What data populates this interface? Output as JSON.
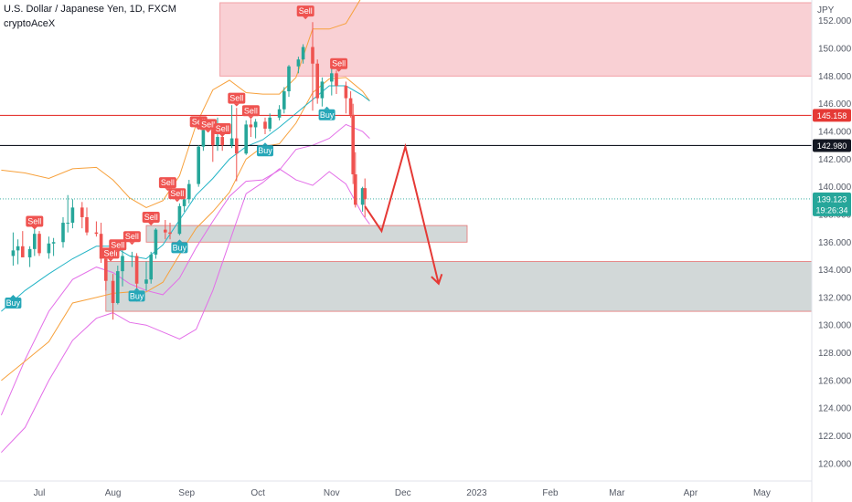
{
  "header": {
    "symbol_title": "U.S. Dollar / Japanese Yen, 1D, FXCM",
    "indicator_name": "cryptoAceX"
  },
  "colors": {
    "up_candle": "#26a69a",
    "down_candle": "#ef5350",
    "resistance_zone": "#f8c8cc",
    "support_zone": "#d0d6d6",
    "orange_band": "#f7a13c",
    "violet_band": "#e36ee8",
    "basis_line": "#23b4c6",
    "red_level": "#e53935",
    "black_level": "#131722",
    "projection": "#e53935",
    "buy_badge": "#26a7b8",
    "sell_badge": "#ef5350"
  },
  "chart_data": {
    "type": "candlestick",
    "title": "U.S. Dollar / Japanese Yen, 1D, FXCM",
    "currency_label": "JPY",
    "x_tick_labels": [
      "Jul",
      "Aug",
      "Sep",
      "Oct",
      "Nov",
      "Dec",
      "2023",
      "Feb",
      "Mar",
      "Apr",
      "May"
    ],
    "y_tick_labels": [
      "120.000",
      "122.000",
      "124.000",
      "126.000",
      "128.000",
      "130.000",
      "132.000",
      "134.000",
      "136.000",
      "138.000",
      "140.000",
      "142.000",
      "144.000",
      "146.000",
      "148.000",
      "150.000",
      "152.000"
    ],
    "ylim": [
      119.0,
      153.3
    ],
    "grid": false,
    "levels": [
      {
        "price": 145.158,
        "label": "145.158",
        "kind": "red"
      },
      {
        "price": 142.98,
        "label": "142.980",
        "kind": "black"
      }
    ],
    "last_price": {
      "price": 139.123,
      "label": "139.123",
      "countdown": "19:26:34"
    },
    "zones": [
      {
        "kind": "resistance",
        "from_date": "2022-09-15",
        "to_date": "2023-06-01",
        "low": 148.0,
        "high": 153.3
      },
      {
        "kind": "support",
        "from_date": "2022-08-15",
        "to_date": "2022-12-28",
        "low": 136.0,
        "high": 137.2
      },
      {
        "kind": "support",
        "from_date": "2022-07-29",
        "to_date": "2023-06-01",
        "low": 131.0,
        "high": 134.6
      }
    ],
    "projection_path": [
      {
        "date": "2022-11-15",
        "price": 138.6
      },
      {
        "date": "2022-11-22",
        "price": 136.8
      },
      {
        "date": "2022-12-02",
        "price": 142.9
      },
      {
        "date": "2022-12-16",
        "price": 133.0
      }
    ],
    "candles": [
      {
        "date": "2022-06-20",
        "open": 135.0,
        "high": 136.7,
        "low": 134.3,
        "close": 135.4
      },
      {
        "date": "2022-06-22",
        "open": 135.4,
        "high": 136.2,
        "low": 134.4,
        "close": 135.7
      },
      {
        "date": "2022-06-24",
        "open": 135.7,
        "high": 136.8,
        "low": 134.9,
        "close": 134.9
      },
      {
        "date": "2022-06-27",
        "open": 134.9,
        "high": 135.7,
        "low": 134.2,
        "close": 135.5
      },
      {
        "date": "2022-06-29",
        "open": 135.5,
        "high": 137.0,
        "low": 135.0,
        "close": 136.6
      },
      {
        "date": "2022-07-01",
        "open": 136.6,
        "high": 136.8,
        "low": 135.0,
        "close": 135.2
      },
      {
        "date": "2022-07-05",
        "open": 135.2,
        "high": 136.4,
        "low": 134.8,
        "close": 135.9
      },
      {
        "date": "2022-07-07",
        "open": 135.9,
        "high": 136.3,
        "low": 135.0,
        "close": 136.0
      },
      {
        "date": "2022-07-11",
        "open": 136.0,
        "high": 137.8,
        "low": 135.6,
        "close": 137.4
      },
      {
        "date": "2022-07-13",
        "open": 137.4,
        "high": 139.4,
        "low": 136.7,
        "close": 137.4
      },
      {
        "date": "2022-07-15",
        "open": 137.4,
        "high": 139.1,
        "low": 137.0,
        "close": 138.5
      },
      {
        "date": "2022-07-19",
        "open": 138.5,
        "high": 138.9,
        "low": 137.0,
        "close": 137.8
      },
      {
        "date": "2022-07-21",
        "open": 137.8,
        "high": 138.5,
        "low": 136.5,
        "close": 136.7
      },
      {
        "date": "2022-07-25",
        "open": 136.7,
        "high": 137.5,
        "low": 136.4,
        "close": 136.6
      },
      {
        "date": "2022-07-27",
        "open": 136.6,
        "high": 137.4,
        "low": 134.5,
        "close": 134.8
      },
      {
        "date": "2022-07-29",
        "open": 134.8,
        "high": 135.0,
        "low": 132.5,
        "close": 133.2
      },
      {
        "date": "2022-08-01",
        "open": 133.2,
        "high": 133.7,
        "low": 130.4,
        "close": 131.6
      },
      {
        "date": "2022-08-03",
        "open": 131.6,
        "high": 134.3,
        "low": 131.5,
        "close": 133.9
      },
      {
        "date": "2022-08-05",
        "open": 133.9,
        "high": 135.5,
        "low": 132.8,
        "close": 135.0
      },
      {
        "date": "2022-08-09",
        "open": 135.0,
        "high": 135.3,
        "low": 134.2,
        "close": 135.0
      },
      {
        "date": "2022-08-11",
        "open": 135.0,
        "high": 135.2,
        "low": 131.7,
        "close": 133.0
      },
      {
        "date": "2022-08-15",
        "open": 133.0,
        "high": 134.6,
        "low": 132.5,
        "close": 133.3
      },
      {
        "date": "2022-08-17",
        "open": 133.3,
        "high": 135.3,
        "low": 133.0,
        "close": 135.1
      },
      {
        "date": "2022-08-19",
        "open": 135.1,
        "high": 137.0,
        "low": 134.8,
        "close": 136.9
      },
      {
        "date": "2022-08-23",
        "open": 136.9,
        "high": 137.6,
        "low": 136.2,
        "close": 136.7
      },
      {
        "date": "2022-08-25",
        "open": 136.7,
        "high": 137.4,
        "low": 136.2,
        "close": 136.6
      },
      {
        "date": "2022-08-29",
        "open": 136.6,
        "high": 138.8,
        "low": 136.5,
        "close": 138.6
      },
      {
        "date": "2022-08-31",
        "open": 138.6,
        "high": 139.3,
        "low": 138.2,
        "close": 139.1
      },
      {
        "date": "2022-09-02",
        "open": 139.1,
        "high": 140.5,
        "low": 138.8,
        "close": 140.2
      },
      {
        "date": "2022-09-06",
        "open": 140.2,
        "high": 143.0,
        "low": 140.0,
        "close": 142.9
      },
      {
        "date": "2022-09-08",
        "open": 142.9,
        "high": 144.9,
        "low": 142.6,
        "close": 144.1
      },
      {
        "date": "2022-09-12",
        "open": 144.1,
        "high": 144.8,
        "low": 141.8,
        "close": 143.0
      },
      {
        "date": "2022-09-14",
        "open": 143.0,
        "high": 145.0,
        "low": 142.6,
        "close": 143.6
      },
      {
        "date": "2022-09-16",
        "open": 143.6,
        "high": 144.6,
        "low": 142.6,
        "close": 143.0
      },
      {
        "date": "2022-09-20",
        "open": 143.0,
        "high": 145.9,
        "low": 142.8,
        "close": 143.5
      },
      {
        "date": "2022-09-22",
        "open": 143.5,
        "high": 145.7,
        "low": 140.4,
        "close": 142.4
      },
      {
        "date": "2022-09-26",
        "open": 142.4,
        "high": 144.8,
        "low": 142.3,
        "close": 144.5
      },
      {
        "date": "2022-09-28",
        "open": 144.5,
        "high": 144.9,
        "low": 143.6,
        "close": 144.3
      },
      {
        "date": "2022-09-30",
        "open": 144.3,
        "high": 144.9,
        "low": 143.5,
        "close": 144.7
      },
      {
        "date": "2022-10-04",
        "open": 144.7,
        "high": 145.0,
        "low": 143.8,
        "close": 144.2
      },
      {
        "date": "2022-10-06",
        "open": 144.2,
        "high": 145.3,
        "low": 144.0,
        "close": 145.0
      },
      {
        "date": "2022-10-10",
        "open": 145.0,
        "high": 145.9,
        "low": 144.8,
        "close": 145.6
      },
      {
        "date": "2022-10-12",
        "open": 145.6,
        "high": 147.2,
        "low": 145.3,
        "close": 146.9
      },
      {
        "date": "2022-10-14",
        "open": 146.9,
        "high": 148.8,
        "low": 146.5,
        "close": 148.7
      },
      {
        "date": "2022-10-18",
        "open": 148.7,
        "high": 149.4,
        "low": 148.2,
        "close": 149.2
      },
      {
        "date": "2022-10-20",
        "open": 149.2,
        "high": 150.3,
        "low": 148.9,
        "close": 150.1
      },
      {
        "date": "2022-10-24",
        "open": 150.1,
        "high": 151.9,
        "low": 145.5,
        "close": 148.9
      },
      {
        "date": "2022-10-26",
        "open": 148.9,
        "high": 149.2,
        "low": 146.0,
        "close": 146.4
      },
      {
        "date": "2022-10-28",
        "open": 146.4,
        "high": 147.9,
        "low": 145.8,
        "close": 147.6
      },
      {
        "date": "2022-11-01",
        "open": 147.6,
        "high": 148.8,
        "low": 146.6,
        "close": 148.2
      },
      {
        "date": "2022-11-03",
        "open": 148.2,
        "high": 148.4,
        "low": 146.7,
        "close": 147.3
      },
      {
        "date": "2022-11-07",
        "open": 147.3,
        "high": 147.6,
        "low": 145.3,
        "close": 146.4
      },
      {
        "date": "2022-11-09",
        "open": 146.4,
        "high": 146.9,
        "low": 145.0,
        "close": 145.2
      },
      {
        "date": "2022-11-10",
        "open": 145.2,
        "high": 146.0,
        "low": 140.2,
        "close": 140.9
      },
      {
        "date": "2022-11-11",
        "open": 140.9,
        "high": 142.5,
        "low": 138.5,
        "close": 138.7
      },
      {
        "date": "2022-11-14",
        "open": 138.7,
        "high": 140.0,
        "low": 138.2,
        "close": 139.9
      },
      {
        "date": "2022-11-15",
        "open": 139.9,
        "high": 140.6,
        "low": 137.8,
        "close": 139.1
      }
    ],
    "signals": [
      {
        "label": "Buy",
        "date": "2022-06-20",
        "price": 131.6,
        "type": "buy"
      },
      {
        "label": "Sell",
        "date": "2022-06-29",
        "price": 137.5,
        "type": "sell"
      },
      {
        "label": "Sell",
        "date": "2022-07-31",
        "price": 135.2,
        "type": "sell"
      },
      {
        "label": "Sell",
        "date": "2022-08-03",
        "price": 135.8,
        "type": "sell"
      },
      {
        "label": "Sell",
        "date": "2022-08-09",
        "price": 136.4,
        "type": "sell"
      },
      {
        "label": "Buy",
        "date": "2022-08-11",
        "price": 132.1,
        "type": "buy"
      },
      {
        "label": "Sell",
        "date": "2022-08-17",
        "price": 137.8,
        "type": "sell"
      },
      {
        "label": "Sell",
        "date": "2022-08-24",
        "price": 140.3,
        "type": "sell"
      },
      {
        "label": "Sell",
        "date": "2022-08-28",
        "price": 139.5,
        "type": "sell"
      },
      {
        "label": "Buy",
        "date": "2022-08-29",
        "price": 135.6,
        "type": "buy"
      },
      {
        "label": "Sell",
        "date": "2022-09-06",
        "price": 144.7,
        "type": "sell"
      },
      {
        "label": "Sell",
        "date": "2022-09-10",
        "price": 144.5,
        "type": "sell"
      },
      {
        "label": "Sell",
        "date": "2022-09-16",
        "price": 144.2,
        "type": "sell"
      },
      {
        "label": "Sell",
        "date": "2022-09-22",
        "price": 146.4,
        "type": "sell"
      },
      {
        "label": "Sell",
        "date": "2022-09-28",
        "price": 145.5,
        "type": "sell"
      },
      {
        "label": "Buy",
        "date": "2022-10-04",
        "price": 142.6,
        "type": "buy"
      },
      {
        "label": "Sell",
        "date": "2022-10-21",
        "price": 152.7,
        "type": "sell"
      },
      {
        "label": "Sell",
        "date": "2022-11-04",
        "price": 148.9,
        "type": "sell"
      },
      {
        "label": "Buy",
        "date": "2022-10-30",
        "price": 145.2,
        "type": "buy"
      }
    ],
    "bands": {
      "dates": [
        "2022-06-15",
        "2022-06-25",
        "2022-07-05",
        "2022-07-15",
        "2022-07-25",
        "2022-08-01",
        "2022-08-08",
        "2022-08-15",
        "2022-08-22",
        "2022-08-29",
        "2022-09-05",
        "2022-09-12",
        "2022-09-19",
        "2022-09-26",
        "2022-10-03",
        "2022-10-10",
        "2022-10-17",
        "2022-10-24",
        "2022-10-31",
        "2022-11-07",
        "2022-11-14",
        "2022-11-17"
      ],
      "orange_upper": [
        141.2,
        141.0,
        140.6,
        141.3,
        141.4,
        140.5,
        139.2,
        138.5,
        139.0,
        140.8,
        144.5,
        147.0,
        147.7,
        146.8,
        146.7,
        146.7,
        147.9,
        151.4,
        151.4,
        151.8,
        153.8,
        154.5
      ],
      "orange_lower": [
        126.0,
        127.4,
        128.8,
        131.6,
        132.0,
        132.3,
        132.4,
        132.4,
        133.1,
        135.1,
        137.0,
        138.2,
        139.6,
        142.0,
        142.9,
        143.1,
        144.6,
        146.8,
        147.8,
        147.9,
        146.9,
        146.2
      ],
      "basis": [
        131.0,
        132.5,
        133.7,
        134.8,
        135.7,
        135.7,
        135.0,
        134.8,
        135.8,
        137.6,
        139.4,
        140.6,
        142.0,
        142.9,
        143.4,
        144.3,
        145.3,
        146.3,
        147.3,
        147.3,
        146.6,
        146.2
      ],
      "violet_upper": [
        123.5,
        127.5,
        131.0,
        133.3,
        134.2,
        133.8,
        133.0,
        132.5,
        132.2,
        133.4,
        135.6,
        137.5,
        139.3,
        140.4,
        140.5,
        141.2,
        142.7,
        143.0,
        143.5,
        144.5,
        144.0,
        143.5
      ],
      "violet_lower": [
        120.8,
        122.6,
        126.0,
        128.9,
        130.5,
        130.9,
        130.2,
        130.0,
        129.5,
        129.0,
        129.7,
        132.5,
        136.0,
        139.5,
        140.3,
        141.3,
        140.5,
        140.1,
        141.1,
        140.2,
        138.0,
        137.3
      ]
    }
  }
}
